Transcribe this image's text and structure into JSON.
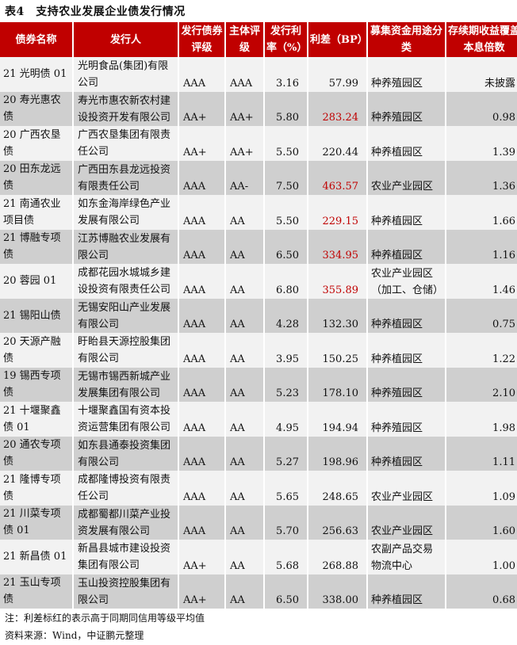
{
  "title": "表4　支持农业发展企业债发行情况",
  "headers": [
    "债券名称",
    "发行人",
    "发行债券评级",
    "主体评级",
    "发行利率（%）",
    "利差（BP）",
    "募集资金用途分类",
    "存续期收益覆盖本息倍数"
  ],
  "colors": {
    "header_bg": "#c00000",
    "highlight": "#c00000"
  },
  "rows": [
    {
      "name": "21 光明债 01",
      "issuer": "光明食品(集团)有限公司",
      "bond_rating": "AAA",
      "issuer_rating": "AAA",
      "rate": "3.16",
      "spread": "57.99",
      "spread_red": false,
      "use": "种养殖园区",
      "coverage": "未披露"
    },
    {
      "name": "20 寿光惠农债",
      "issuer": "寿光市惠农新农村建设投资开发有限公司",
      "bond_rating": "AA+",
      "issuer_rating": "AA+",
      "rate": "5.80",
      "spread": "283.24",
      "spread_red": true,
      "use": "种养殖园区",
      "coverage": "0.98"
    },
    {
      "name": "20 广西农垦债",
      "issuer": "广西农垦集团有限责任公司",
      "bond_rating": "AA+",
      "issuer_rating": "AA+",
      "rate": "5.50",
      "spread": "220.44",
      "spread_red": false,
      "use": "种养植园区",
      "coverage": "1.39"
    },
    {
      "name": "20 田东龙远债",
      "issuer": "广西田东县龙远投资有限责任公司",
      "bond_rating": "AAA",
      "issuer_rating": "AA-",
      "rate": "7.50",
      "spread": "463.57",
      "spread_red": true,
      "use": "农业产业园区",
      "coverage": "1.36"
    },
    {
      "name": "21 南通农业项目债",
      "issuer": "如东金海岸绿色产业发展有限公司",
      "bond_rating": "AAA",
      "issuer_rating": "AA",
      "rate": "5.50",
      "spread": "229.15",
      "spread_red": true,
      "use": "种养植园区",
      "coverage": "1.66"
    },
    {
      "name": "21 博融专项债",
      "issuer": "江苏博融农业发展有限公司",
      "bond_rating": "AAA",
      "issuer_rating": "AA",
      "rate": "6.50",
      "spread": "334.95",
      "spread_red": true,
      "use": "种养植园区",
      "coverage": "1.16"
    },
    {
      "name": "20 蓉园 01",
      "issuer": "成都花园水城城乡建设投资有限责任公司",
      "bond_rating": "AAA",
      "issuer_rating": "AA",
      "rate": "6.80",
      "spread": "355.89",
      "spread_red": true,
      "use": "农业产业园区（加工、仓储）",
      "coverage": "1.46"
    },
    {
      "name": "21 锡阳山债",
      "issuer": "无锡安阳山产业发展有限公司",
      "bond_rating": "AAA",
      "issuer_rating": "AA",
      "rate": "4.28",
      "spread": "132.30",
      "spread_red": false,
      "use": "种养植园区",
      "coverage": "0.75"
    },
    {
      "name": "20 天源产融债",
      "issuer": "盱眙县天源控股集团有限公司",
      "bond_rating": "AAA",
      "issuer_rating": "AA",
      "rate": "3.95",
      "spread": "150.25",
      "spread_red": false,
      "use": "种养植园区",
      "coverage": "1.22"
    },
    {
      "name": "19 锡西专项债",
      "issuer": "无锡市锡西新城产业发展集团有限公司",
      "bond_rating": "AAA",
      "issuer_rating": "AA",
      "rate": "5.23",
      "spread": "178.10",
      "spread_red": false,
      "use": "种养殖园区",
      "coverage": "2.10"
    },
    {
      "name": "21 十堰聚鑫债 01",
      "issuer": "十堰聚鑫国有资本投资运营集团有限公司",
      "bond_rating": "AAA",
      "issuer_rating": "AA",
      "rate": "4.95",
      "spread": "194.94",
      "spread_red": false,
      "use": "种养殖园区",
      "coverage": "1.98"
    },
    {
      "name": "20 通农专项债",
      "issuer": "如东县通泰投资集团有限公司",
      "bond_rating": "AAA",
      "issuer_rating": "AA",
      "rate": "5.27",
      "spread": "198.96",
      "spread_red": false,
      "use": "种养植园区",
      "coverage": "1.11"
    },
    {
      "name": "21 隆博专项债",
      "issuer": "成都隆博投资有限责任公司",
      "bond_rating": "AAA",
      "issuer_rating": "AA",
      "rate": "5.65",
      "spread": "248.65",
      "spread_red": false,
      "use": "农业产业园区",
      "coverage": "1.09"
    },
    {
      "name": "21 川菜专项债 01",
      "issuer": "成都蜀都川菜产业投资发展有限公司",
      "bond_rating": "AAA",
      "issuer_rating": "AA",
      "rate": "5.70",
      "spread": "256.63",
      "spread_red": false,
      "use": "农业产业园区",
      "coverage": "1.60"
    },
    {
      "name": "21 新昌债 01",
      "issuer": "新昌县城市建设投资集团有限公司",
      "bond_rating": "AA+",
      "issuer_rating": "AA",
      "rate": "5.68",
      "spread": "268.88",
      "spread_red": false,
      "use": "农副产品交易物流中心",
      "coverage": "1.00"
    },
    {
      "name": "21 玉山专项债",
      "issuer": "玉山投资控股集团有限公司",
      "bond_rating": "AA+",
      "issuer_rating": "AA",
      "rate": "6.50",
      "spread": "338.00",
      "spread_red": false,
      "use": "种养植园区",
      "coverage": "0.68"
    }
  ],
  "note": "注：利差标红的表示高于同期同信用等级平均值",
  "source": "资料来源：Wind，中证鹏元整理"
}
